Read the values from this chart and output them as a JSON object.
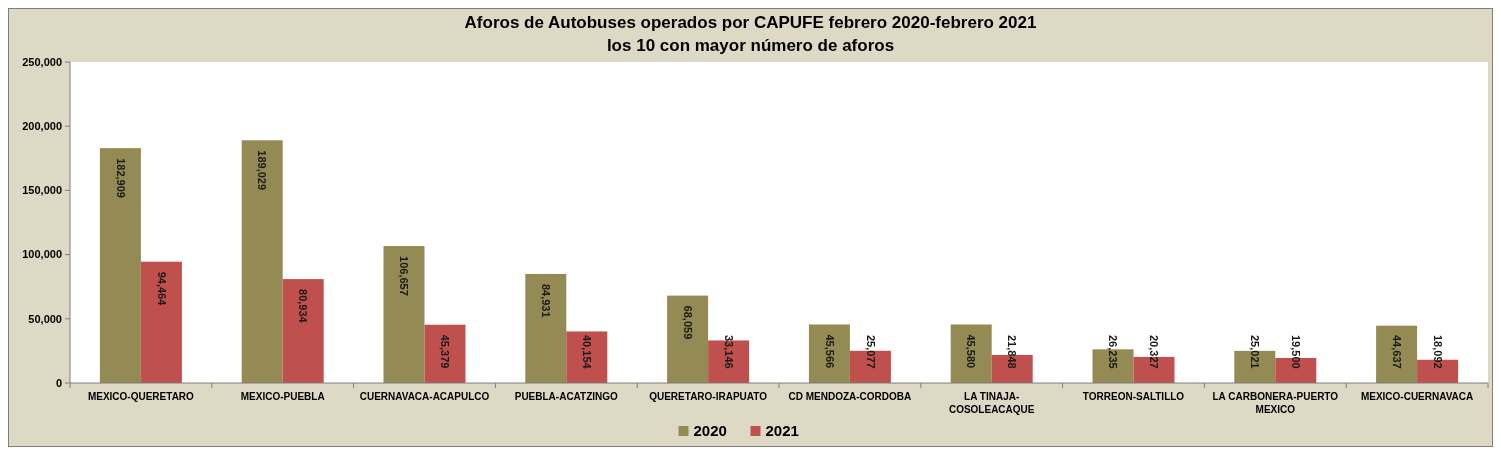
{
  "chart_data": {
    "type": "bar",
    "title": "Aforos de Autobuses operados por CAPUFE febrero 2020-febrero 2021",
    "subtitle": "los 10 con mayor número de aforos",
    "categories": [
      "MEXICO-QUERETARO",
      "MEXICO-PUEBLA",
      "CUERNAVACA-ACAPULCO",
      "PUEBLA-ACATZINGO",
      "QUERETARO-IRAPUATO",
      "CD MENDOZA-CORDOBA",
      "LA TINAJA-COSOLEACAQUE",
      "TORREON-SALTILLO",
      "LA CARBONERA-PUERTO MEXICO",
      "MEXICO-CUERNAVACA"
    ],
    "series": [
      {
        "name": "2020",
        "color": "#948a54",
        "values": [
          182909,
          189029,
          106657,
          84931,
          68059,
          45566,
          45580,
          26235,
          25021,
          44637
        ],
        "value_labels": [
          "182,909",
          "189,029",
          "106,657",
          "84,931",
          "68,059",
          "45,566",
          "45,580",
          "26,235",
          "25,021",
          "44,637"
        ]
      },
      {
        "name": "2021",
        "color": "#c0504d",
        "values": [
          94464,
          80934,
          45379,
          40154,
          33146,
          25077,
          21848,
          20327,
          19500,
          18092
        ],
        "value_labels": [
          "94,464",
          "80,934",
          "45,379",
          "40,154",
          "33,146",
          "25,077",
          "21,848",
          "20,327",
          "19,500",
          "18,092"
        ]
      }
    ],
    "ylim": [
      0,
      250000
    ],
    "yticks": [
      {
        "value": 0,
        "label": "0"
      },
      {
        "value": 50000,
        "label": "50,000"
      },
      {
        "value": 100000,
        "label": "100,000"
      },
      {
        "value": 150000,
        "label": "150,000"
      },
      {
        "value": 200000,
        "label": "200,000"
      },
      {
        "value": 250000,
        "label": "250,000"
      }
    ],
    "legend": "bottom",
    "grid": false
  }
}
